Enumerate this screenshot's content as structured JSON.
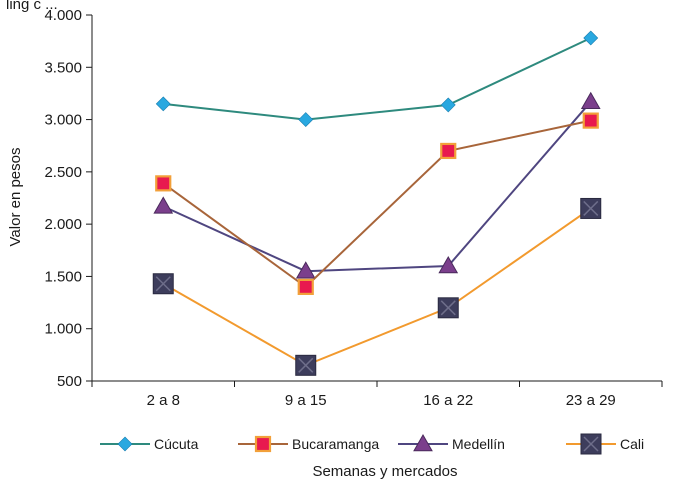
{
  "top_clipped_text": "ling c ...",
  "chart_data": {
    "type": "line",
    "title": "",
    "xlabel": "Semanas y mercados",
    "ylabel": "Valor en pesos",
    "categories": [
      "2 a 8",
      "9 a 15",
      "16 a 22",
      "23 a 29"
    ],
    "ylim": [
      500,
      4000
    ],
    "yticks": [
      500,
      1000,
      1500,
      2000,
      2500,
      3000,
      3500,
      4000
    ],
    "ytick_labels": [
      "500",
      "1.000",
      "1.500",
      "2.000",
      "2.500",
      "3.000",
      "3.500",
      "4.000"
    ],
    "grid": false,
    "legend_position": "bottom",
    "series": [
      {
        "name": "Cúcuta",
        "values": [
          3150,
          3000,
          3140,
          3780
        ],
        "color": "#2e8a7e",
        "marker": "diamond",
        "marker_color": "#29a8e0"
      },
      {
        "name": "Bucaramanga",
        "values": [
          2390,
          1400,
          2700,
          2990
        ],
        "color": "#a8653a",
        "marker": "square",
        "marker_color": "#e8194f"
      },
      {
        "name": "Medellín",
        "values": [
          2170,
          1550,
          1600,
          3170
        ],
        "color": "#4f4680",
        "marker": "triangle",
        "marker_color": "#7b3f8c"
      },
      {
        "name": "Cali",
        "values": [
          1430,
          650,
          1200,
          2150
        ],
        "color": "#f29a2e",
        "marker": "box-x",
        "marker_color": "#3d3d5c"
      }
    ]
  }
}
